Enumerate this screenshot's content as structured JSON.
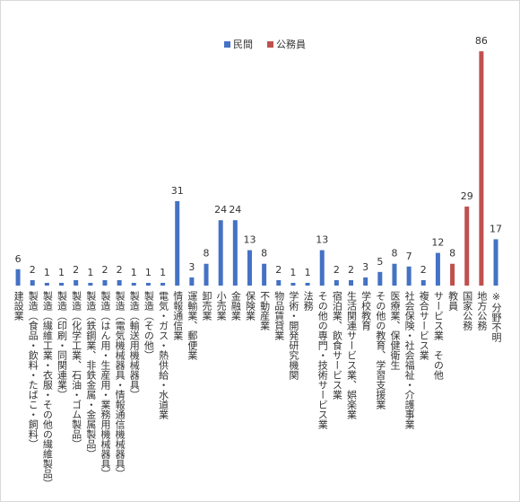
{
  "chart_data": {
    "type": "bar",
    "categories": [
      "建設業",
      "製造（食品・飲料・たばこ・飼料）",
      "製造（繊維工業・衣服・その他の繊維製品）",
      "製造（印刷・同関連業）",
      "製造（化学工業、石油・ゴム製品）",
      "製造（鉄鋼業、非鉄金属・金属製品）",
      "製造（はん用・生産用・業務用機械器具）",
      "製造（電気機械器具・情報通信機械器具）",
      "製造（輸送用機械器具）",
      "製造（その他）",
      "電気・ガス・熱供給・水道業",
      "情報通信業",
      "運輸業、郵便業",
      "卸売業",
      "小売業",
      "金融業",
      "保険業",
      "不動産業",
      "物品賃貸業",
      "学術・開発研究機関",
      "法務",
      "その他の専門・技術サービス業",
      "宿泊業、飲食サービス業",
      "生活関連サービス業、娯楽業",
      "学校教育",
      "その他の教育、学習支援業",
      "医療業、保健衛生",
      "社会保険・社会福祉・介護事業",
      "複合サービス業",
      "サービス業　その他",
      "教員",
      "国家公務",
      "地方公務",
      "※分野不明"
    ],
    "series": [
      {
        "name": "民間",
        "color": "#4472c4",
        "values": [
          6,
          2,
          1,
          1,
          2,
          1,
          2,
          2,
          1,
          1,
          1,
          31,
          3,
          8,
          24,
          24,
          13,
          8,
          2,
          1,
          1,
          13,
          2,
          2,
          3,
          5,
          8,
          7,
          2,
          12,
          null,
          null,
          null,
          17
        ]
      },
      {
        "name": "公務員",
        "color": "#c0504d",
        "values": [
          null,
          null,
          null,
          null,
          null,
          null,
          null,
          null,
          null,
          null,
          null,
          null,
          null,
          null,
          null,
          null,
          null,
          null,
          null,
          null,
          null,
          null,
          null,
          null,
          null,
          null,
          null,
          null,
          null,
          null,
          8,
          29,
          86,
          null
        ]
      }
    ],
    "ylim": [
      0,
      90
    ]
  }
}
